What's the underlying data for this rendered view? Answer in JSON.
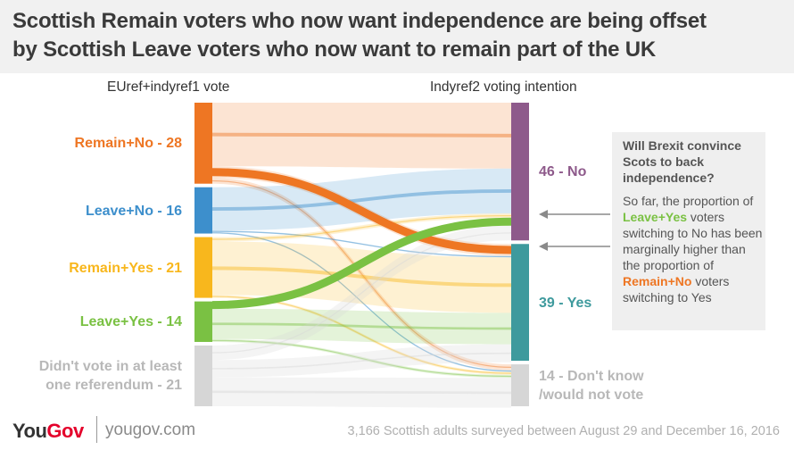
{
  "title_lines": [
    "Scottish Remain voters who now want independence are being offset",
    "by Scottish Leave voters who now want to remain part of the UK"
  ],
  "left_axis_label": "EUref+indyref1 vote",
  "right_axis_label": "Indyref2 voting intention",
  "callout": {
    "title": "Will Brexit convince Scots to back independence?",
    "body_1": "So far, the proportion of",
    "hl_1": "Leave+Yes",
    "body_2": "voters switching to No has been marginally higher than the proportion of",
    "hl_2": "Remain+No",
    "body_3": "voters switching to Yes"
  },
  "footer": {
    "logo_you": "You",
    "logo_gov": "Gov",
    "site": "yougov.com",
    "note": "3,166 Scottish adults surveyed between August 29 and December 16, 2016"
  },
  "chart_data": {
    "type": "sankey",
    "sources": [
      {
        "label": "Remain+No - 28",
        "value": 28,
        "color": "#ee7623"
      },
      {
        "label": "Leave+No - 16",
        "value": 16,
        "color": "#3d8fcc"
      },
      {
        "label": "Remain+Yes - 21",
        "value": 21,
        "color": "#f8b71d"
      },
      {
        "label": "Leave+Yes - 14",
        "value": 14,
        "color": "#7ac143"
      },
      {
        "label": "Didn't vote in at least one referendum - 21",
        "value": 21,
        "color": "#d6d6d6"
      }
    ],
    "targets": [
      {
        "label": "46 - No",
        "value": 46,
        "color": "#8e5a8b"
      },
      {
        "label": "39 - Yes",
        "value": 39,
        "color": "#3e9a9d"
      },
      {
        "label": "14 - Don't know /would not vote",
        "value": 14,
        "color": "#d6d6d6"
      }
    ],
    "flows": [
      {
        "source": 0,
        "target": 0,
        "value": 22,
        "highlight": false
      },
      {
        "source": 0,
        "target": 1,
        "value": 4,
        "highlight": true
      },
      {
        "source": 0,
        "target": 2,
        "value": 2,
        "highlight": false
      },
      {
        "source": 1,
        "target": 0,
        "value": 15,
        "highlight": false
      },
      {
        "source": 1,
        "target": 1,
        "value": 0.5,
        "highlight": false
      },
      {
        "source": 1,
        "target": 2,
        "value": 0.5,
        "highlight": false
      },
      {
        "source": 2,
        "target": 0,
        "value": 1.5,
        "highlight": false
      },
      {
        "source": 2,
        "target": 1,
        "value": 18.5,
        "highlight": false
      },
      {
        "source": 2,
        "target": 2,
        "value": 1,
        "highlight": false
      },
      {
        "source": 3,
        "target": 0,
        "value": 2.5,
        "highlight": true
      },
      {
        "source": 3,
        "target": 1,
        "value": 10.5,
        "highlight": false
      },
      {
        "source": 3,
        "target": 2,
        "value": 1,
        "highlight": false
      },
      {
        "source": 4,
        "target": 0,
        "value": 5,
        "highlight": false
      },
      {
        "source": 4,
        "target": 1,
        "value": 6,
        "highlight": false
      },
      {
        "source": 4,
        "target": 2,
        "value": 10,
        "highlight": false
      }
    ]
  }
}
